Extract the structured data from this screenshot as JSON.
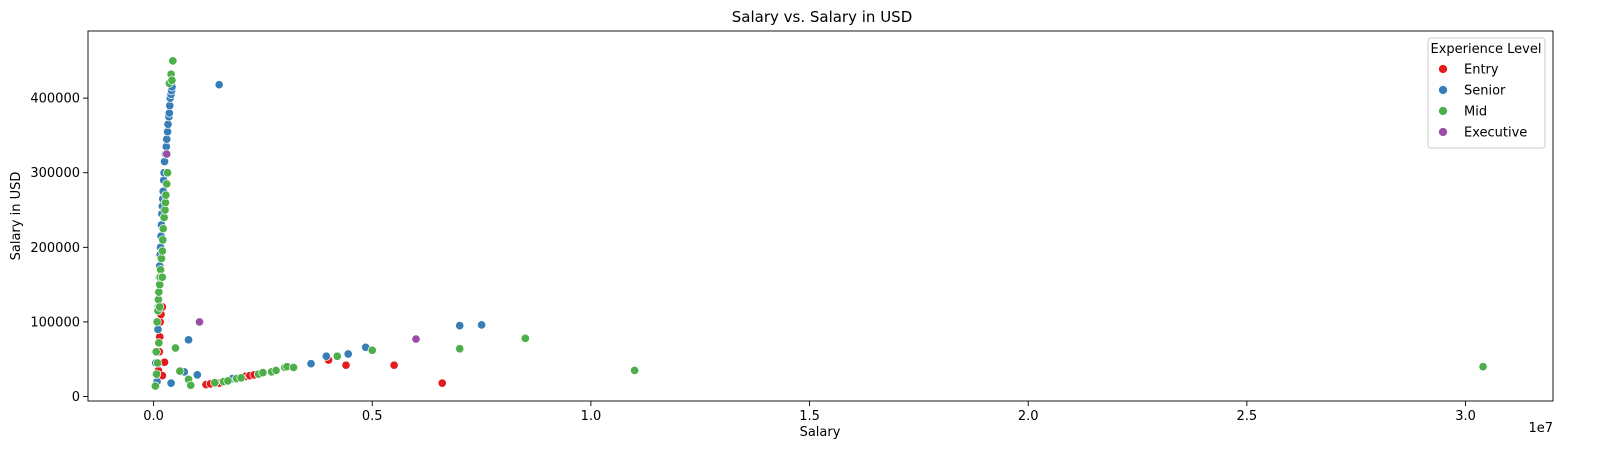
{
  "chart_data": {
    "type": "scatter",
    "title": "Salary vs. Salary in USD",
    "xlabel": "Salary",
    "ylabel": "Salary in USD",
    "x_offset_text": "1e7",
    "x_scale": 10000000,
    "xlim": [
      -1500000,
      32000000
    ],
    "ylim": [
      -6000,
      490000
    ],
    "x_ticks": [
      0,
      5000000,
      10000000,
      15000000,
      20000000,
      25000000,
      30000000
    ],
    "x_tick_labels": [
      "0.0",
      "0.5",
      "1.0",
      "1.5",
      "2.0",
      "2.5",
      "3.0"
    ],
    "y_ticks": [
      0,
      100000,
      200000,
      300000,
      400000
    ],
    "y_tick_labels": [
      "0",
      "100000",
      "200000",
      "300000",
      "400000"
    ],
    "grid": false,
    "legend": {
      "title": "Experience Level",
      "position": "top-right"
    },
    "series": [
      {
        "name": "Entry",
        "color": "#e41a1c",
        "points": [
          [
            60000,
            15000
          ],
          [
            80000,
            20000
          ],
          [
            100000,
            28000
          ],
          [
            110000,
            35000
          ],
          [
            120000,
            45000
          ],
          [
            130000,
            60000
          ],
          [
            140000,
            80000
          ],
          [
            150000,
            100000
          ],
          [
            170000,
            110000
          ],
          [
            200000,
            120000
          ],
          [
            250000,
            46000
          ],
          [
            200000,
            28000
          ],
          [
            240000,
            250000
          ],
          [
            260000,
            270000
          ],
          [
            1200000,
            16000
          ],
          [
            1300000,
            17000
          ],
          [
            1500000,
            18000
          ],
          [
            2100000,
            27000
          ],
          [
            2200000,
            28000
          ],
          [
            2300000,
            29000
          ],
          [
            4000000,
            49000
          ],
          [
            4400000,
            42000
          ],
          [
            5500000,
            42000
          ],
          [
            6600000,
            18000
          ]
        ]
      },
      {
        "name": "Senior",
        "color": "#377eb8",
        "points": [
          [
            50000,
            45000
          ],
          [
            80000,
            20000
          ],
          [
            100000,
            90000
          ],
          [
            110000,
            120000
          ],
          [
            120000,
            140000
          ],
          [
            130000,
            160000
          ],
          [
            140000,
            175000
          ],
          [
            150000,
            190000
          ],
          [
            160000,
            200000
          ],
          [
            170000,
            215000
          ],
          [
            180000,
            230000
          ],
          [
            190000,
            245000
          ],
          [
            200000,
            255000
          ],
          [
            210000,
            265000
          ],
          [
            220000,
            275000
          ],
          [
            230000,
            290000
          ],
          [
            240000,
            300000
          ],
          [
            250000,
            315000
          ],
          [
            270000,
            325000
          ],
          [
            290000,
            335000
          ],
          [
            300000,
            345000
          ],
          [
            320000,
            355000
          ],
          [
            330000,
            365000
          ],
          [
            350000,
            375000
          ],
          [
            360000,
            380000
          ],
          [
            370000,
            390000
          ],
          [
            380000,
            400000
          ],
          [
            400000,
            405000
          ],
          [
            410000,
            410000
          ],
          [
            420000,
            415000
          ],
          [
            400000,
            18000
          ],
          [
            700000,
            33000
          ],
          [
            800000,
            76000
          ],
          [
            1000000,
            29000
          ],
          [
            1500000,
            418000
          ],
          [
            1800000,
            24000
          ],
          [
            3600000,
            44000
          ],
          [
            3950000,
            54000
          ],
          [
            4450000,
            57000
          ],
          [
            4850000,
            66000
          ],
          [
            7000000,
            95000
          ],
          [
            7500000,
            96000
          ]
        ]
      },
      {
        "name": "Mid",
        "color": "#4daf4a",
        "points": [
          [
            40000,
            14000
          ],
          [
            50000,
            30000
          ],
          [
            60000,
            60000
          ],
          [
            80000,
            100000
          ],
          [
            100000,
            115000
          ],
          [
            110000,
            130000
          ],
          [
            120000,
            140000
          ],
          [
            140000,
            150000
          ],
          [
            160000,
            170000
          ],
          [
            180000,
            185000
          ],
          [
            200000,
            195000
          ],
          [
            210000,
            210000
          ],
          [
            220000,
            225000
          ],
          [
            240000,
            240000
          ],
          [
            260000,
            250000
          ],
          [
            270000,
            260000
          ],
          [
            280000,
            270000
          ],
          [
            300000,
            285000
          ],
          [
            320000,
            300000
          ],
          [
            360000,
            420000
          ],
          [
            400000,
            432000
          ],
          [
            420000,
            424000
          ],
          [
            440000,
            450000
          ],
          [
            150000,
            160000
          ],
          [
            140000,
            120000
          ],
          [
            200000,
            160000
          ],
          [
            120000,
            72000
          ],
          [
            70000,
            30000
          ],
          [
            90000,
            45000
          ],
          [
            500000,
            65000
          ],
          [
            600000,
            34000
          ],
          [
            800000,
            23000
          ],
          [
            850000,
            15000
          ],
          [
            1400000,
            18500
          ],
          [
            1600000,
            20000
          ],
          [
            1700000,
            21000
          ],
          [
            1900000,
            24000
          ],
          [
            2000000,
            25000
          ],
          [
            2400000,
            30000
          ],
          [
            2500000,
            32000
          ],
          [
            2700000,
            33000
          ],
          [
            2800000,
            35000
          ],
          [
            3000000,
            39000
          ],
          [
            3050000,
            40000
          ],
          [
            3200000,
            39000
          ],
          [
            4200000,
            54000
          ],
          [
            5000000,
            62000
          ],
          [
            7000000,
            64000
          ],
          [
            8500000,
            78000
          ],
          [
            11000000,
            35000
          ],
          [
            30400000,
            40000
          ]
        ]
      },
      {
        "name": "Executive",
        "color": "#984ea3",
        "points": [
          [
            300000,
            325000
          ],
          [
            1050000,
            100000
          ],
          [
            6000000,
            77000
          ]
        ]
      }
    ]
  }
}
